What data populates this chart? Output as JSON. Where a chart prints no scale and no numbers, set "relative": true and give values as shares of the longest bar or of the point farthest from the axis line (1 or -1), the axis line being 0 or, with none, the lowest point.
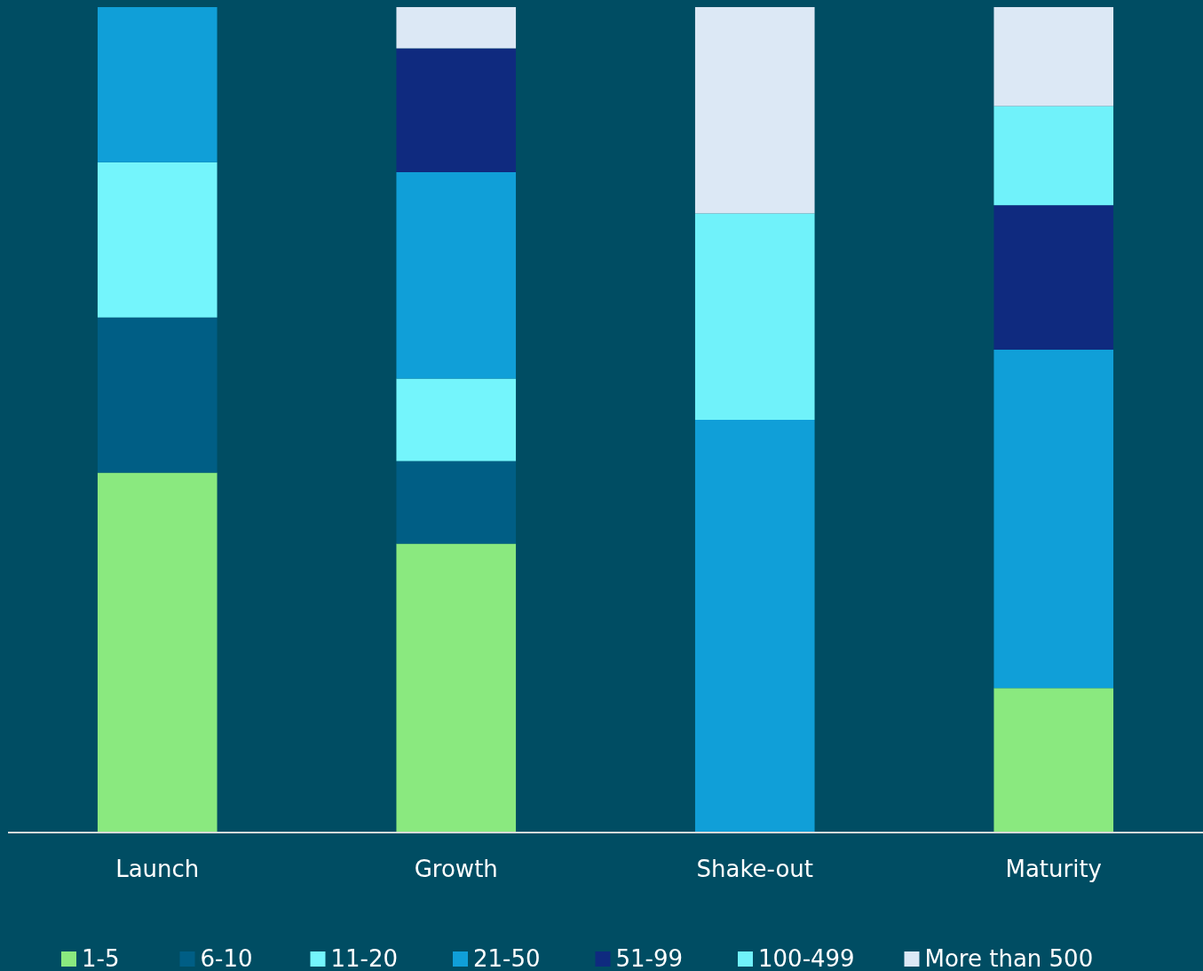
{
  "chart_data": {
    "type": "bar",
    "stacked": true,
    "relative": true,
    "legend": "bottom",
    "categories": [
      "Launch",
      "Growth",
      "Shake-out",
      "Maturity"
    ],
    "series": [
      {
        "name": "1-5",
        "color": "#8ae97f",
        "values": [
          0.436,
          0.35,
          0,
          0.175
        ]
      },
      {
        "name": "6-10",
        "color": "#005e85",
        "values": [
          0.188,
          0.1,
          0,
          0
        ]
      },
      {
        "name": "11-20",
        "color": "#74f5fc",
        "values": [
          0.188,
          0.1,
          0,
          0
        ]
      },
      {
        "name": "21-50",
        "color": "#109fd8",
        "values": [
          0.188,
          0.25,
          0.5,
          0.41
        ]
      },
      {
        "name": "51-99",
        "color": "#0f2a7f",
        "values": [
          0,
          0.15,
          0,
          0.175
        ]
      },
      {
        "name": "100-499",
        "color": "#70f2fa",
        "values": [
          0,
          0,
          0.25,
          0.12
        ]
      },
      {
        "name": "More than 500",
        "color": "#dce8f5",
        "values": [
          0,
          0.05,
          0.25,
          0.12
        ]
      }
    ]
  }
}
